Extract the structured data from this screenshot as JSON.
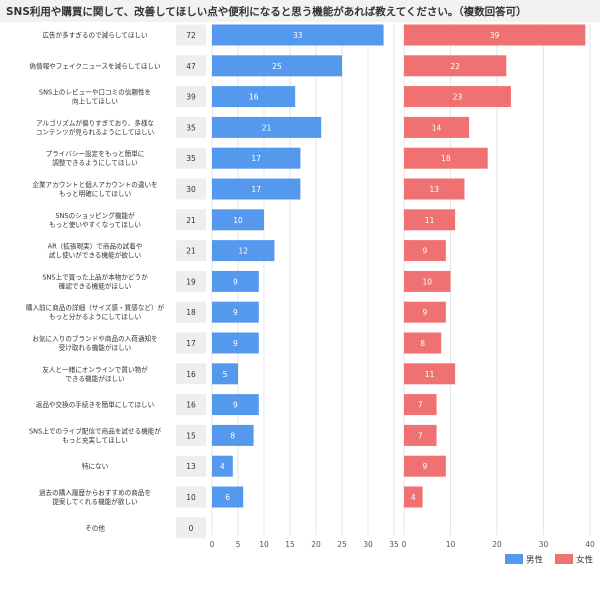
{
  "title": "SNS利用や購買に関して、改善してほしい点や便利になると思う機能があれば教えてください。（複数回答可）",
  "chart_data": {
    "type": "bar",
    "orientation": "horizontal",
    "categories": [
      [
        "広告が多すぎるので減らしてほしい"
      ],
      [
        "偽情報やフェイクニュースを減らしてほしい"
      ],
      [
        "SNS上のレビューや口コミの信頼性を",
        "向上してほしい"
      ],
      [
        "アルゴリズムが偏りすぎており、多様な",
        "コンテンツが見られるようにしてほしい"
      ],
      [
        "プライバシー設定をもっと簡単に",
        "調整できるようにしてほしい"
      ],
      [
        "企業アカウントと個人アカウントの違いを",
        "もっと明確にしてほしい"
      ],
      [
        "SNSのショッピング機能が",
        "もっと使いやすくなってほしい"
      ],
      [
        "AR（拡張現実）で商品の試着や",
        "試し使いができる機能が欲しい"
      ],
      [
        "SNS上で買った上品が本物かどうか",
        "確認できる機能がほしい"
      ],
      [
        "購入前に商品の詳細（サイズ感・質感など）が",
        "もっと分かるようにしてほしい"
      ],
      [
        "お気に入りのブランドや商品の入荷通知を",
        "受け取れる機能がほしい"
      ],
      [
        "友人と一緒にオンラインで買い物が",
        "できる機能がほしい"
      ],
      [
        "返品や交換の手続きを簡単にしてほしい"
      ],
      [
        "SNS上でのライブ配信で商品を試せる機能が",
        "もっと充実してほしい"
      ],
      [
        "特にない"
      ],
      [
        "過去の購入履歴からおすすめの商品を",
        "提案してくれる機能が欲しい"
      ],
      [
        "その他"
      ]
    ],
    "totals": [
      72,
      47,
      39,
      35,
      35,
      30,
      21,
      21,
      19,
      18,
      17,
      16,
      16,
      15,
      13,
      10,
      0
    ],
    "series": [
      {
        "name": "男性",
        "color": "#5599ee",
        "values": [
          33,
          25,
          16,
          21,
          17,
          17,
          10,
          12,
          9,
          9,
          9,
          5,
          9,
          8,
          4,
          6,
          0
        ],
        "xlim": [
          0,
          35
        ],
        "ticks": [
          0,
          5,
          10,
          15,
          20,
          25,
          30,
          35
        ]
      },
      {
        "name": "女性",
        "color": "#f07172",
        "values": [
          39,
          22,
          23,
          14,
          18,
          13,
          11,
          9,
          10,
          9,
          8,
          11,
          7,
          7,
          9,
          4,
          0
        ],
        "xlim": [
          0,
          40
        ],
        "ticks": [
          0,
          10,
          20,
          30,
          40
        ]
      }
    ],
    "grid": true,
    "legend": "bottom-right"
  }
}
